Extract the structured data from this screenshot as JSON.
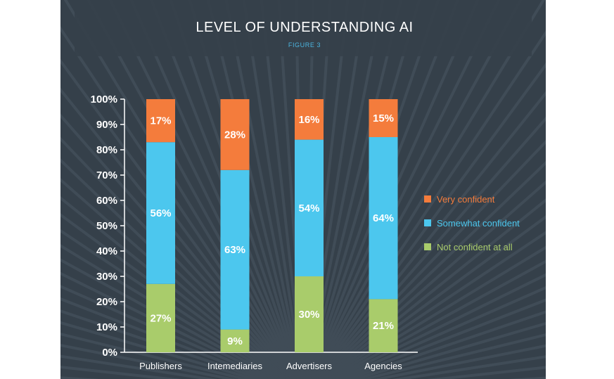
{
  "chart_data": {
    "type": "bar",
    "stacked": true,
    "title": "LEVEL OF UNDERSTANDING AI",
    "subtitle": "FIGURE 3",
    "categories": [
      "Publishers",
      "Intemediaries",
      "Advertisers",
      "Agencies"
    ],
    "series": [
      {
        "name": "Not confident at all",
        "color": "#a9cc6b",
        "values": [
          27,
          9,
          30,
          21
        ]
      },
      {
        "name": "Somewhat confident",
        "color": "#4cc7ee",
        "values": [
          56,
          63,
          54,
          64
        ]
      },
      {
        "name": "Very confident",
        "color": "#f47c3c",
        "values": [
          17,
          28,
          16,
          15
        ]
      }
    ],
    "legend_order": [
      "Very confident",
      "Somewhat confident",
      "Not confident at all"
    ],
    "data_labels": [
      [
        "27%",
        "9%",
        "30%",
        "21%"
      ],
      [
        "56%",
        "63%",
        "54%",
        "64%"
      ],
      [
        "17%",
        "28%",
        "16%",
        "15%"
      ]
    ],
    "yticks": [
      "0%",
      "10%",
      "20%",
      "30%",
      "40%",
      "50%",
      "60%",
      "70%",
      "80%",
      "90%",
      "100%"
    ],
    "ylim": [
      0,
      100
    ],
    "grid": false,
    "legend_position": "right",
    "background_color": "#35404a"
  }
}
